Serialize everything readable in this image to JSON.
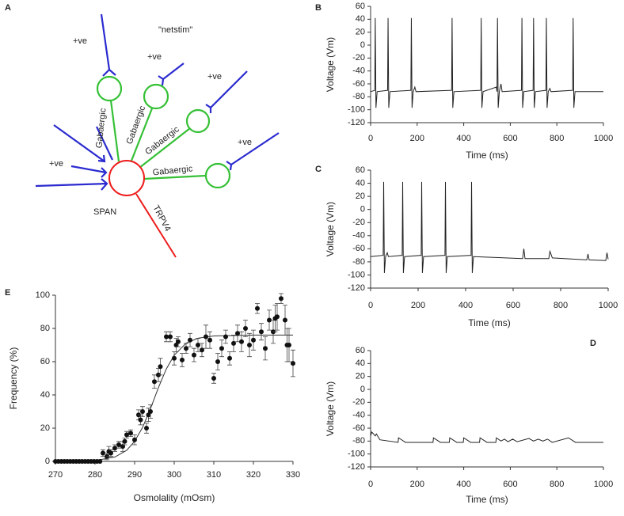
{
  "diagram": {
    "panel": "A",
    "inputs": [
      "+ve",
      "+ve",
      "+ve",
      "+ve",
      "+ve"
    ],
    "netstim": "\"netstim\"",
    "connections": [
      "Gabaergic",
      "Gabaergic",
      "Gabaergic",
      "Gabaergic"
    ],
    "neuron": "SPAN",
    "channel": "TRPV4"
  },
  "chart_data": [
    {
      "type": "line",
      "panel": "B",
      "xlabel": "Time (ms)",
      "ylabel": "Voltage (Vm)",
      "color": "#222222",
      "x": [
        0,
        18,
        20,
        23,
        28,
        73,
        75,
        78,
        83,
        173,
        175,
        178,
        183,
        190,
        195,
        348,
        350,
        353,
        358,
        473,
        475,
        478,
        483,
        540,
        543,
        545,
        548,
        553,
        560,
        565,
        648,
        650,
        653,
        658,
        698,
        700,
        703,
        708,
        753,
        755,
        758,
        763,
        770,
        775,
        868,
        870,
        873,
        878,
        1000
      ],
      "values": [
        -72,
        -70,
        42,
        -97,
        -72,
        -70,
        42,
        -97,
        -72,
        -70,
        42,
        -97,
        -72,
        -65,
        -72,
        -70,
        42,
        -97,
        -72,
        -70,
        42,
        -97,
        -72,
        -65,
        -72,
        42,
        -97,
        -72,
        -60,
        -72,
        -70,
        42,
        -97,
        -72,
        -70,
        42,
        -97,
        -72,
        -70,
        42,
        -97,
        -72,
        -67,
        -72,
        -70,
        42,
        -97,
        -72,
        -72
      ],
      "xlim": [
        0,
        1000
      ],
      "xticks": [
        0,
        200,
        400,
        600,
        800,
        1000
      ],
      "ylim": [
        -120,
        60
      ],
      "yticks": [
        -120,
        -100,
        -80,
        -60,
        -40,
        -20,
        0,
        20,
        40,
        60
      ]
    },
    {
      "type": "line",
      "panel": "C",
      "xlabel": "Time (ms)",
      "ylabel": "Voltage (Vm)",
      "color": "#222222",
      "x": [
        0,
        53,
        55,
        58,
        63,
        70,
        75,
        133,
        135,
        138,
        143,
        213,
        215,
        218,
        223,
        313,
        315,
        318,
        323,
        423,
        425,
        428,
        433,
        640,
        645,
        650,
        750,
        755,
        765,
        910,
        915,
        920,
        990,
        995,
        1000
      ],
      "values": [
        -72,
        -70,
        42,
        -97,
        -72,
        -66,
        -72,
        -70,
        42,
        -97,
        -72,
        -70,
        42,
        -97,
        -72,
        -70,
        42,
        -97,
        -72,
        -70,
        42,
        -97,
        -72,
        -75,
        -60,
        -75,
        -75,
        -64,
        -74,
        -77,
        -68,
        -77,
        -78,
        -66,
        -76
      ],
      "xlim": [
        0,
        1000
      ],
      "xticks": [
        0,
        200,
        400,
        600,
        800,
        1000
      ],
      "ylim": [
        -120,
        60
      ],
      "yticks": [
        -120,
        -100,
        -80,
        -60,
        -40,
        -20,
        0,
        20,
        40,
        60
      ]
    },
    {
      "type": "line",
      "panel": "D",
      "xlabel": "Time (ms)",
      "ylabel": "Voltage (Vm)",
      "color": "#222222",
      "x": [
        0,
        5,
        20,
        25,
        40,
        118,
        120,
        150,
        268,
        270,
        300,
        338,
        340,
        370,
        398,
        400,
        430,
        468,
        470,
        500,
        538,
        540,
        560,
        575,
        590,
        610,
        630,
        680,
        700,
        720,
        740,
        760,
        780,
        850,
        880,
        1000
      ],
      "values": [
        -72,
        -66,
        -72,
        -69,
        -78,
        -82,
        -75,
        -82,
        -82,
        -75,
        -82,
        -82,
        -75,
        -82,
        -82,
        -75,
        -82,
        -82,
        -75,
        -82,
        -82,
        -75,
        -80,
        -77,
        -81,
        -77,
        -81,
        -76,
        -80,
        -77,
        -80,
        -77,
        -82,
        -75,
        -82,
        -82
      ],
      "xlim": [
        0,
        1000
      ],
      "xticks": [
        0,
        200,
        400,
        600,
        800,
        1000
      ],
      "ylim": [
        -120,
        60
      ],
      "yticks": [
        -120,
        -100,
        -80,
        -60,
        -40,
        -20,
        0,
        20,
        40,
        60
      ]
    },
    {
      "type": "scatter",
      "panel": "E",
      "xlabel": "Osmolality (mOsm)",
      "ylabel": "Frequency (%)",
      "color": "#111111",
      "x": [
        270,
        270.75,
        271.5,
        272.25,
        273,
        273.75,
        274.5,
        275.25,
        276,
        276.75,
        277.5,
        278.25,
        279,
        279.75,
        280.5,
        281.25,
        282,
        283,
        283.5,
        284,
        285,
        286,
        287,
        287.5,
        288,
        289,
        290,
        291,
        291.5,
        292,
        293,
        293.5,
        294,
        295,
        296,
        296.5,
        298,
        299,
        300,
        300.5,
        301,
        302,
        303,
        304,
        305,
        306,
        307,
        308,
        309,
        310,
        311,
        312,
        313,
        314,
        315,
        316,
        317,
        318,
        319,
        320,
        321,
        322,
        323,
        324,
        325,
        325.5,
        326,
        327,
        328,
        328.5,
        329,
        330
      ],
      "values": [
        0,
        0,
        0,
        0,
        0,
        0,
        0,
        0,
        0,
        0,
        0,
        0,
        0,
        0,
        0,
        0,
        5,
        3,
        6,
        5,
        8,
        10,
        9,
        12,
        16,
        17,
        13,
        28,
        25,
        30,
        20,
        28,
        30,
        48,
        52,
        57,
        75,
        75,
        62,
        70,
        72,
        61,
        68,
        73,
        64,
        70,
        67,
        75,
        73,
        50,
        60,
        68,
        75,
        62,
        71,
        77,
        72,
        80,
        70,
        73,
        92,
        78,
        68,
        85,
        78,
        86,
        87,
        98,
        85,
        70,
        70,
        59
      ],
      "errors": [
        0,
        0,
        0,
        0,
        0,
        0,
        0,
        0,
        0,
        0,
        0,
        0,
        0,
        0,
        0,
        0,
        2,
        2,
        3,
        2,
        2,
        2,
        3,
        2,
        2,
        2,
        3,
        3,
        3,
        3,
        3,
        4,
        4,
        4,
        4,
        5,
        3,
        3,
        4,
        4,
        3,
        4,
        3,
        4,
        4,
        4,
        4,
        7,
        5,
        3,
        5,
        5,
        4,
        4,
        5,
        5,
        6,
        5,
        7,
        6,
        3,
        5,
        7,
        6,
        7,
        8,
        8,
        3,
        9,
        10,
        10,
        8
      ],
      "fit": {
        "x": [
          270,
          280,
          285,
          288,
          290,
          292,
          294,
          295,
          296,
          298,
          300,
          303,
          306,
          310,
          320,
          330
        ],
        "values": [
          0,
          0.5,
          2.6,
          6.7,
          12.1,
          20.4,
          31.7,
          38,
          44.3,
          55.6,
          63.9,
          71.1,
          74.1,
          75.5,
          76,
          76
        ]
      },
      "xlim": [
        270,
        330
      ],
      "xticks": [
        270,
        280,
        290,
        300,
        310,
        320,
        330
      ],
      "ylim": [
        0,
        100
      ],
      "yticks": [
        0,
        20,
        40,
        60,
        80,
        100
      ]
    }
  ]
}
